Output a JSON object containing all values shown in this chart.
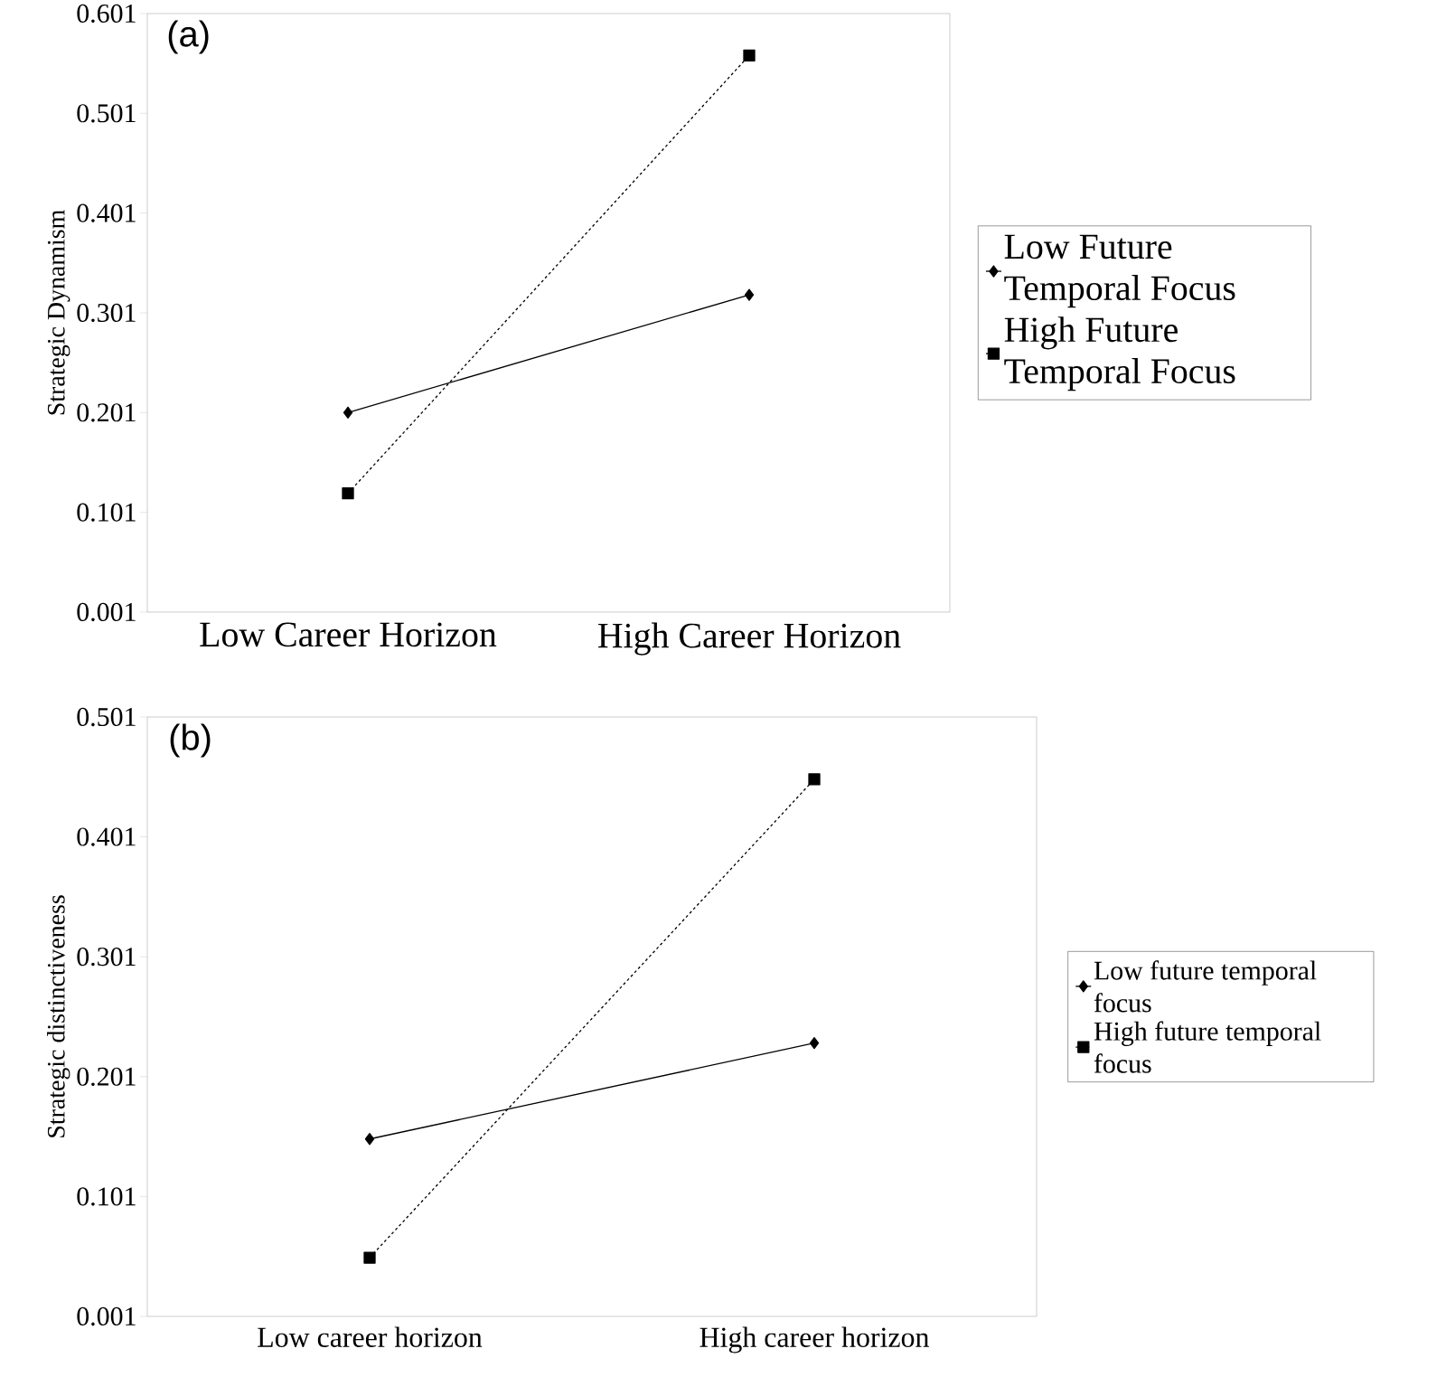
{
  "chart_data": [
    {
      "type": "line",
      "title": "(a)",
      "ylabel": "Strategic  Dynamism",
      "categories": [
        "Low Career Horizon",
        "High Career Horizon"
      ],
      "ylim": [
        0.001,
        0.601
      ],
      "yticks": [
        0.001,
        0.101,
        0.201,
        0.301,
        0.401,
        0.501,
        0.601
      ],
      "grid": false,
      "legend": "right",
      "series": [
        {
          "name": "Low Future Temporal Focus",
          "color": "#000000",
          "values": [
            0.201,
            0.319
          ],
          "marker": "diamond",
          "line_style": "solid"
        },
        {
          "name": "High Future Temporal Focus",
          "color": "#000000",
          "values": [
            0.12,
            0.559
          ],
          "marker": "square",
          "line_style": "dashed"
        }
      ]
    },
    {
      "type": "line",
      "title": "(b)",
      "ylabel": "Strategic  distinctiveness",
      "categories": [
        "Low career horizon",
        "High career horizon"
      ],
      "ylim": [
        0.001,
        0.501
      ],
      "yticks": [
        0.001,
        0.101,
        0.201,
        0.301,
        0.401,
        0.501
      ],
      "grid": false,
      "legend": "right",
      "series": [
        {
          "name": "Low future temporal focus",
          "color": "#000000",
          "values": [
            0.149,
            0.229
          ],
          "marker": "diamond",
          "line_style": "solid"
        },
        {
          "name": "High future temporal focus",
          "color": "#000000",
          "values": [
            0.05,
            0.449
          ],
          "marker": "square",
          "line_style": "dashed"
        }
      ]
    }
  ]
}
